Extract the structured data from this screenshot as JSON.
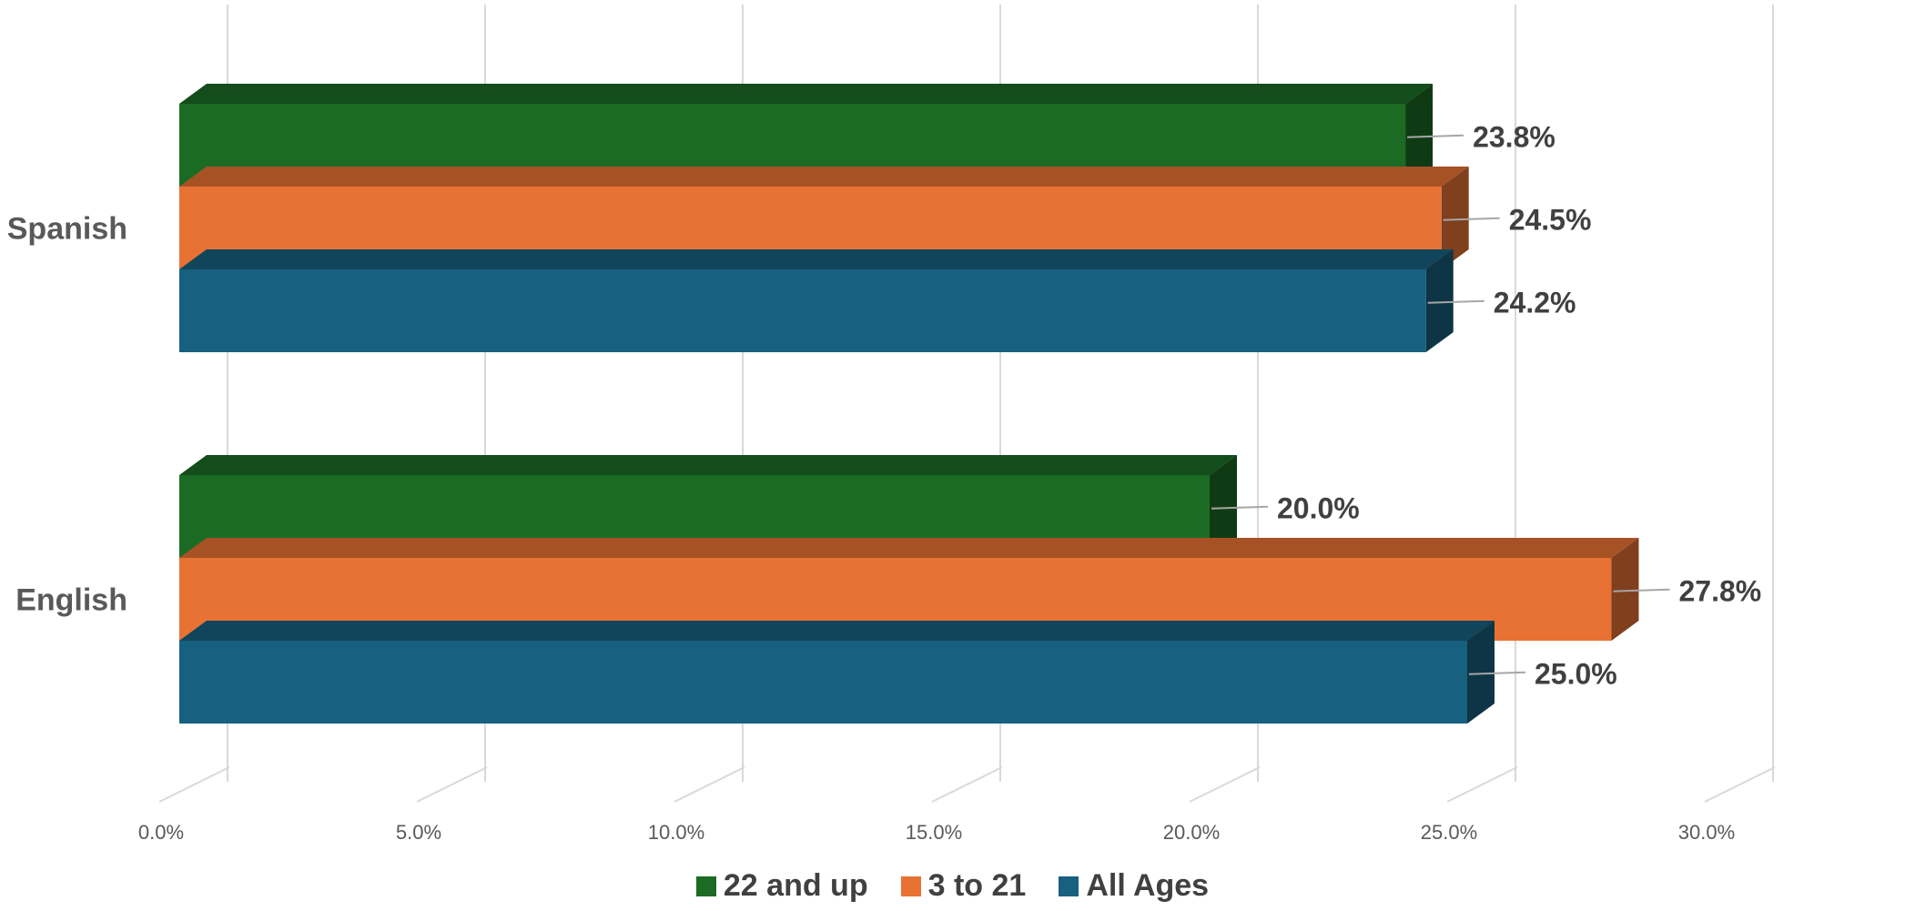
{
  "chart_data": {
    "type": "bar",
    "orientation": "horizontal",
    "style": "3d-clustered",
    "categories": [
      "English",
      "Spanish"
    ],
    "series": [
      {
        "name": "All Ages",
        "values": [
          25.0,
          24.2
        ],
        "color": "#17607F"
      },
      {
        "name": "3 to 21",
        "values": [
          27.8,
          24.5
        ],
        "color": "#E87234"
      },
      {
        "name": "22 and up",
        "values": [
          20.0,
          23.8
        ],
        "color": "#1B6B25"
      }
    ],
    "data_labels": {
      "English": [
        "25.0%",
        "27.8%",
        "20.0%"
      ],
      "Spanish": [
        "24.2%",
        "24.5%",
        "23.8%"
      ]
    },
    "x_ticks": [
      "0.0%",
      "5.0%",
      "10.0%",
      "15.0%",
      "20.0%",
      "25.0%",
      "30.0%"
    ],
    "xlim": [
      0,
      30
    ],
    "grid": true,
    "legend_position": "bottom",
    "title": "",
    "xlabel": "",
    "ylabel": ""
  }
}
